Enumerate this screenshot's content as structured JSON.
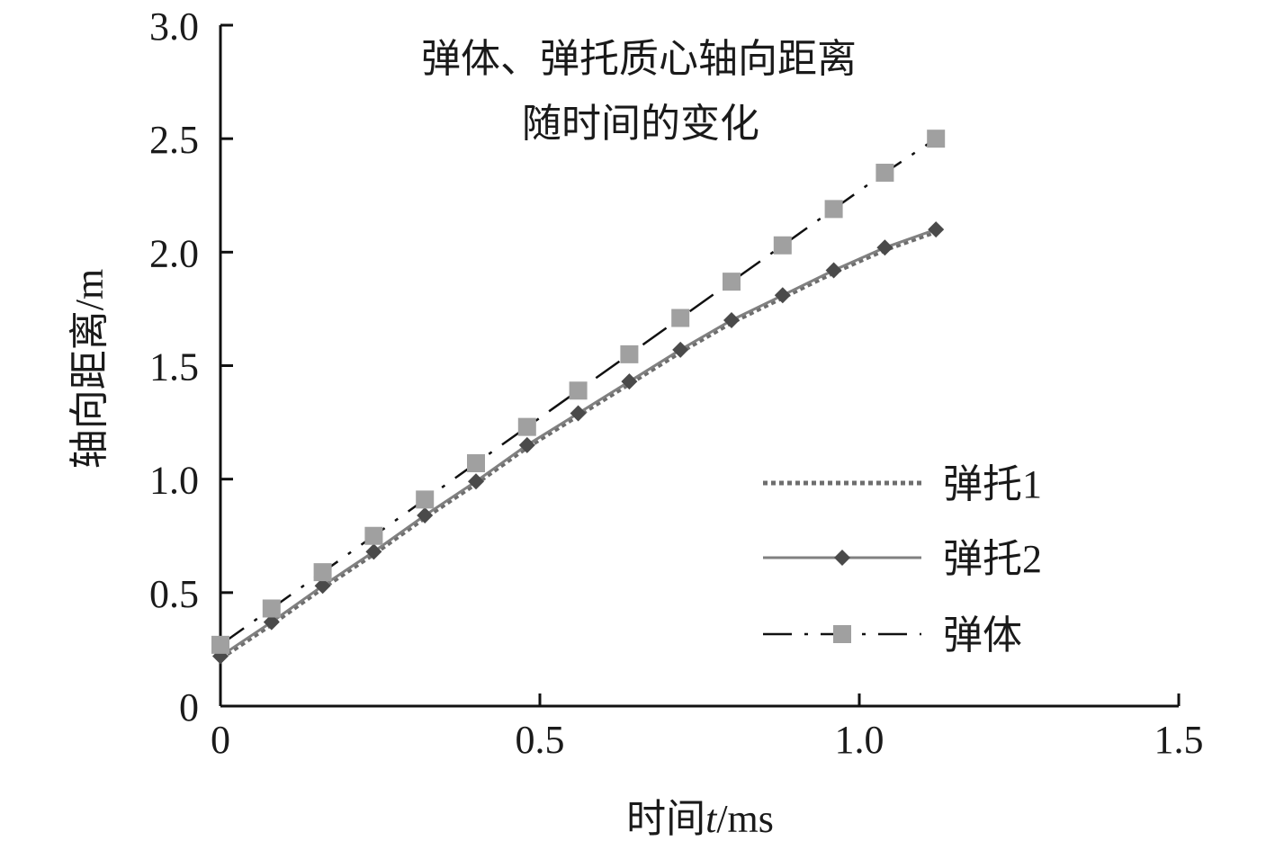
{
  "chart_data": {
    "type": "line",
    "title_lines": [
      "弹体、弹托质心轴向距离",
      "随时间的变化"
    ],
    "xlabel_parts": {
      "pre": "时间",
      "italic": "t",
      "post": "/ms"
    },
    "ylabel": "轴向距离/m",
    "xlim": [
      0,
      1.5
    ],
    "ylim": [
      0,
      3.0
    ],
    "x_ticks": [
      0,
      0.5,
      1.0,
      1.5
    ],
    "x_tick_labels": [
      "0",
      "0.5",
      "1.0",
      "1.5"
    ],
    "y_ticks": [
      0,
      0.5,
      1.0,
      1.5,
      2.0,
      2.5,
      3.0
    ],
    "y_tick_labels": [
      "0",
      "0.5",
      "1.0",
      "1.5",
      "2.0",
      "2.5",
      "3.0"
    ],
    "grid": false,
    "legend_position": "right",
    "series": [
      {
        "name": "弹托1",
        "line_style": "dotted",
        "marker": "none",
        "color": "#6e6e6e",
        "x": [
          0,
          0.08,
          0.16,
          0.24,
          0.32,
          0.4,
          0.48,
          0.56,
          0.64,
          0.72,
          0.8,
          0.88,
          0.96,
          1.04,
          1.12
        ],
        "y": [
          0.21,
          0.36,
          0.52,
          0.67,
          0.83,
          0.98,
          1.14,
          1.28,
          1.42,
          1.56,
          1.69,
          1.8,
          1.91,
          2.01,
          2.09
        ]
      },
      {
        "name": "弹托2",
        "line_style": "solid",
        "marker": "diamond",
        "color": "#808080",
        "marker_color": "#4a4a4a",
        "x": [
          0,
          0.08,
          0.16,
          0.24,
          0.32,
          0.4,
          0.48,
          0.56,
          0.64,
          0.72,
          0.8,
          0.88,
          0.96,
          1.04,
          1.12
        ],
        "y": [
          0.22,
          0.37,
          0.53,
          0.68,
          0.84,
          0.99,
          1.15,
          1.29,
          1.43,
          1.57,
          1.7,
          1.81,
          1.92,
          2.02,
          2.1
        ]
      },
      {
        "name": "弹体",
        "line_style": "dashdot",
        "marker": "square",
        "color": "#111111",
        "marker_color": "#a0a0a0",
        "x": [
          0,
          0.08,
          0.16,
          0.24,
          0.32,
          0.4,
          0.48,
          0.56,
          0.64,
          0.72,
          0.8,
          0.88,
          0.96,
          1.04,
          1.12
        ],
        "y": [
          0.27,
          0.43,
          0.59,
          0.75,
          0.91,
          1.07,
          1.23,
          1.39,
          1.55,
          1.71,
          1.87,
          2.03,
          2.19,
          2.35,
          2.5
        ]
      }
    ]
  }
}
